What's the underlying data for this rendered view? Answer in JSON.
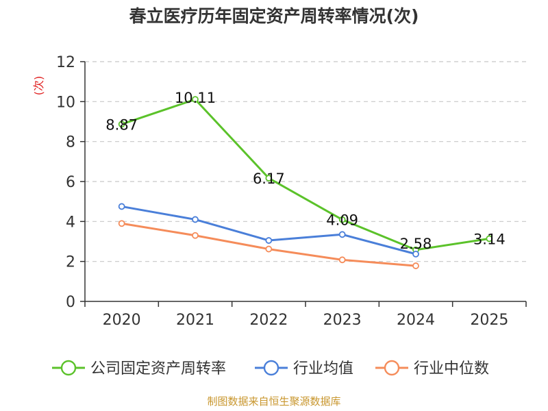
{
  "chart_data": {
    "type": "line",
    "title": "春立医疗历年固定资产周转率情况(次)",
    "ylabel": "(次)",
    "xlabel": "",
    "categories": [
      "2020",
      "2021",
      "2022",
      "2023",
      "2024",
      "2025"
    ],
    "ylim": [
      0,
      12
    ],
    "yticks": [
      0,
      2,
      4,
      6,
      8,
      10,
      12
    ],
    "grid": true,
    "legend_position": "bottom",
    "series": [
      {
        "name": "公司固定资产周转率",
        "color": "#5bc22a",
        "values": [
          8.87,
          10.11,
          6.17,
          4.09,
          2.58,
          3.14
        ],
        "labels": [
          "8.87",
          "10.11",
          "6.17",
          "4.09",
          "2.58",
          "3.14"
        ]
      },
      {
        "name": "行业均值",
        "color": "#4a7fd9",
        "values": [
          4.75,
          4.1,
          3.05,
          3.35,
          2.37,
          null
        ]
      },
      {
        "name": "行业中位数",
        "color": "#f58c5a",
        "values": [
          3.9,
          3.3,
          2.62,
          2.08,
          1.78,
          null
        ]
      }
    ]
  },
  "source": "制图数据来自恒生聚源数据库",
  "colors": {
    "axis": "#333333",
    "grid": "#c8c8c8",
    "unit": "#e02020",
    "source": "#c8962d"
  }
}
